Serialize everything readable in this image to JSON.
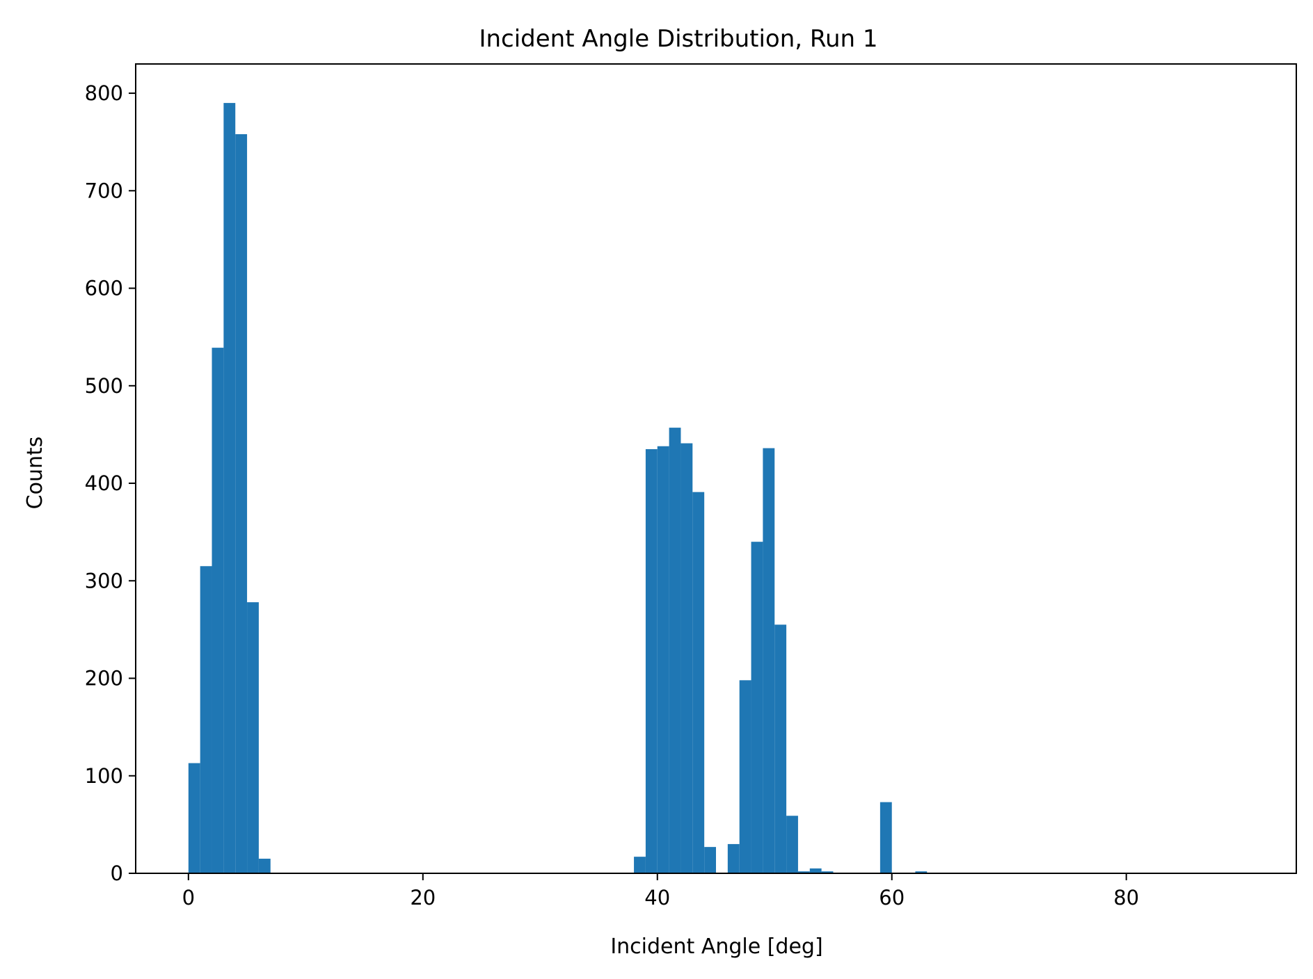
{
  "chart_data": {
    "type": "bar",
    "title": "Incident Angle Distribution, Run 1",
    "xlabel": "Incident Angle [deg]",
    "ylabel": "Counts",
    "xlim": [
      -4.5,
      94.5
    ],
    "ylim": [
      0,
      830
    ],
    "xticks": [
      0,
      20,
      40,
      60,
      80
    ],
    "yticks": [
      0,
      100,
      200,
      300,
      400,
      500,
      600,
      700,
      800
    ],
    "grid": false,
    "color": "#1f77b4",
    "bin_width": 1,
    "bins": [
      {
        "x0": 0,
        "count": 113
      },
      {
        "x0": 1,
        "count": 315
      },
      {
        "x0": 2,
        "count": 539
      },
      {
        "x0": 3,
        "count": 790
      },
      {
        "x0": 4,
        "count": 758
      },
      {
        "x0": 5,
        "count": 278
      },
      {
        "x0": 6,
        "count": 15
      },
      {
        "x0": 38,
        "count": 17
      },
      {
        "x0": 39,
        "count": 435
      },
      {
        "x0": 40,
        "count": 438
      },
      {
        "x0": 41,
        "count": 457
      },
      {
        "x0": 42,
        "count": 441
      },
      {
        "x0": 43,
        "count": 391
      },
      {
        "x0": 44,
        "count": 27
      },
      {
        "x0": 46,
        "count": 30
      },
      {
        "x0": 47,
        "count": 198
      },
      {
        "x0": 48,
        "count": 340
      },
      {
        "x0": 49,
        "count": 436
      },
      {
        "x0": 50,
        "count": 255
      },
      {
        "x0": 51,
        "count": 59
      },
      {
        "x0": 52,
        "count": 2
      },
      {
        "x0": 53,
        "count": 5
      },
      {
        "x0": 54,
        "count": 2
      },
      {
        "x0": 59,
        "count": 73
      },
      {
        "x0": 62,
        "count": 2
      }
    ]
  }
}
